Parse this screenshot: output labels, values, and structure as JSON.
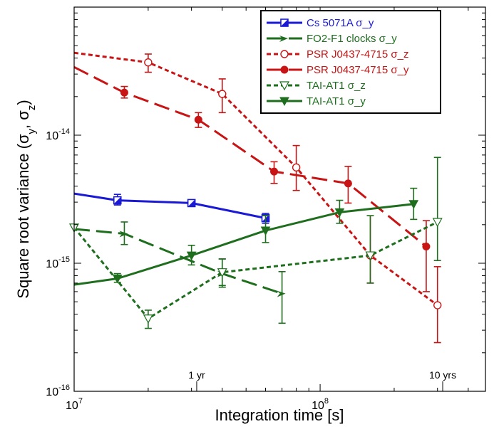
{
  "chart_data": {
    "type": "line",
    "xlabel": "Integration time [s]",
    "ylabel": "Square root variance (σ_y, σ_z)",
    "xscale": "log",
    "yscale": "log",
    "xlim": [
      10000000.0,
      470000000.0
    ],
    "ylim": [
      1e-16,
      1e-13
    ],
    "x_ticks": [
      {
        "value": 10000000.0,
        "base": "10",
        "exp": "7"
      },
      {
        "value": 100000000.0,
        "base": "10",
        "exp": "8"
      }
    ],
    "y_ticks": [
      {
        "value": 1e-16,
        "base": "10",
        "exp": "-16"
      },
      {
        "value": 1e-15,
        "base": "10",
        "exp": "-15"
      },
      {
        "value": 1e-14,
        "base": "10",
        "exp": "-14"
      }
    ],
    "annotations": [
      {
        "text": "1 yr",
        "x": 31500000.0
      },
      {
        "text": "10 yrs",
        "x": 315000000.0
      }
    ],
    "legend_position": "top-right",
    "series": [
      {
        "name": "Cs 5071A σ_y",
        "color": "#1a1ad6",
        "dash": "solid",
        "marker": "half-square",
        "x": [
          10000000.0,
          15000000.0,
          30000000.0,
          60000000.0
        ],
        "y": [
          3.5e-15,
          3.1e-15,
          2.95e-15,
          2.25e-15
        ],
        "marker_x": [
          15000000.0,
          30000000.0,
          60000000.0
        ],
        "err_lo": [
          2.85e-15,
          2.85e-15,
          2.05e-15
        ],
        "err_hi": [
          3.45e-15,
          3.05e-15,
          2.45e-15
        ]
      },
      {
        "name": "FO2-F1 clocks σ_y",
        "color": "#1e6e1e",
        "dash": "long",
        "marker": "arrow",
        "x": [
          10000000.0,
          16000000.0,
          40000000.0,
          70000000.0
        ],
        "y": [
          1.85e-15,
          1.7e-15,
          8.3e-16,
          5.8e-16
        ],
        "marker_x": [
          16000000.0,
          40000000.0,
          70000000.0
        ],
        "err_lo": [
          1.4e-15,
          6.5e-16,
          3.4e-16
        ],
        "err_hi": [
          2.1e-15,
          1.08e-15,
          8.6e-16
        ]
      },
      {
        "name": "PSR J0437-4715 σ_z",
        "color": "#c81414",
        "dash": "short",
        "marker": "open-circle",
        "x": [
          10000000.0,
          20000000.0,
          40000000.0,
          80000000.0,
          160000000.0,
          300000000.0
        ],
        "y": [
          4.4e-14,
          3.7e-14,
          2.1e-14,
          5.6e-15,
          1.15e-15,
          4.7e-16
        ],
        "marker_x": [
          20000000.0,
          40000000.0,
          80000000.0,
          160000000.0,
          300000000.0
        ],
        "err_lo": [
          3.1e-14,
          1.5e-14,
          3.7e-15,
          7e-16,
          2.4e-16
        ],
        "err_hi": [
          4.3e-14,
          2.75e-14,
          8.3e-15,
          2.35e-15,
          9.4e-16
        ]
      },
      {
        "name": "PSR  J0437-4715 σ_y",
        "color": "#c81414",
        "dash": "long",
        "marker": "filled-circle",
        "x": [
          10000000.0,
          16000000.0,
          32000000.0,
          65000000.0,
          130000000.0,
          270000000.0
        ],
        "y": [
          3.4e-14,
          2.15e-14,
          1.32e-14,
          5.2e-15,
          4.2e-15,
          1.35e-15
        ],
        "marker_x": [
          16000000.0,
          32000000.0,
          65000000.0,
          130000000.0,
          270000000.0
        ],
        "err_lo": [
          1.95e-14,
          1.15e-14,
          4.2e-15,
          2.95e-15,
          6e-16
        ],
        "err_hi": [
          2.4e-14,
          1.5e-14,
          6.2e-15,
          5.7e-15,
          2.15e-15
        ]
      },
      {
        "name": "TAI-AT1 σ_z",
        "color": "#1e6e1e",
        "dash": "short",
        "marker": "open-triangle-down",
        "x": [
          10000000.0,
          20000000.0,
          40000000.0,
          160000000.0,
          300000000.0
        ],
        "y": [
          1.9e-15,
          3.7e-16,
          8.5e-16,
          1.15e-15,
          2.1e-15
        ],
        "marker_x": [
          10000000.0,
          20000000.0,
          40000000.0,
          160000000.0,
          300000000.0
        ],
        "err_lo": [
          1.9e-15,
          3.1e-16,
          6.7e-16,
          7e-16,
          1.05e-15
        ],
        "err_hi": [
          1.9e-15,
          4.3e-16,
          1.08e-15,
          2.35e-15,
          6.7e-15
        ]
      },
      {
        "name": "TAI-AT1 σ_y",
        "color": "#1e6e1e",
        "dash": "solid",
        "marker": "filled-triangle-down",
        "x": [
          10000000.0,
          15000000.0,
          30000000.0,
          60000000.0,
          120000000.0,
          240000000.0
        ],
        "y": [
          6.8e-16,
          7.6e-16,
          1.15e-15,
          1.8e-15,
          2.5e-15,
          2.9e-15
        ],
        "marker_x": [
          15000000.0,
          30000000.0,
          60000000.0,
          120000000.0,
          240000000.0
        ],
        "err_lo": [
          7.1e-16,
          9.7e-16,
          1.45e-15,
          2.05e-15,
          2.2e-15
        ],
        "err_hi": [
          8.3e-16,
          1.38e-15,
          2.35e-15,
          3.1e-15,
          3.85e-15
        ]
      }
    ]
  }
}
